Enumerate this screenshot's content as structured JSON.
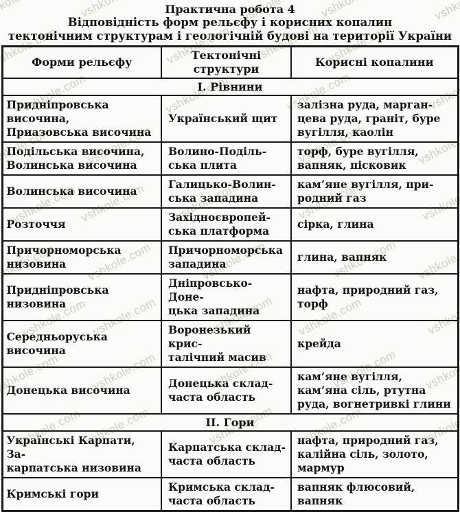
{
  "watermark": {
    "text": "vshkole.com"
  },
  "title": {
    "line1": "Практична робота 4",
    "line2": "Відповідність форм рельєфу і корисних копалин",
    "line3": "тектонічним структурам і геологічній будові на території України"
  },
  "table": {
    "headers": {
      "relief": "Форми рельєфу",
      "tectonic": "Тектонічні\nструктури",
      "minerals": "Корисні копалини"
    },
    "sections": [
      {
        "label": "І. Рівнини",
        "rows": [
          {
            "relief": "Придніпровська височина,\nПриазовська височина",
            "tectonic": "Український щит",
            "minerals": "залізна руда, марган-\nцева руда, граніт, буре\nвугілля, каолін"
          },
          {
            "relief": "Подільська височина,\nВолинська височина",
            "tectonic": "Волино-Поділь-\nська плита",
            "minerals": "торф, буре вугілля,\nвапняк, пісковик"
          },
          {
            "relief": "Волинська височина",
            "tectonic": "Галицько-Волин-\nська западина",
            "minerals": "кам’яне вугілля, при-\nродний газ"
          },
          {
            "relief": "Розточчя",
            "tectonic": "Західноєвропей-\nська платформа",
            "minerals": "сірка, глина"
          },
          {
            "relief": "Причорноморська\nнизовина",
            "tectonic": "Причорноморська\nзападина",
            "minerals": "глина, вапняк"
          },
          {
            "relief": "Придніпровська низовина",
            "tectonic": "Дніпровсько-Доне-\nцька западина",
            "minerals": "нафта, природний газ,\nторф"
          },
          {
            "relief": "Середньоруська височина",
            "tectonic": "Воронезький крис-\nталічний масив",
            "minerals": "крейда"
          },
          {
            "relief": "Донецька височина",
            "tectonic": "Донецька склад-\nчаста область",
            "minerals": "кам’яне вугілля,\nкам’яна сіль, ртутна\nруда, вогнетривкі глини"
          }
        ]
      },
      {
        "label": "ІІ. Гори",
        "rows": [
          {
            "relief": "Українські Карпати, За-\nкарпатська низовина",
            "tectonic": "Карпатська склад-\nчаста область",
            "minerals": "нафта, природний газ,\nкалійна сіль, золото,\nмармур"
          },
          {
            "relief": "Кримські гори",
            "tectonic": "Кримська склад-\nчаста область",
            "minerals": "вапняк флюсовий,\nвапняк"
          }
        ]
      }
    ]
  }
}
